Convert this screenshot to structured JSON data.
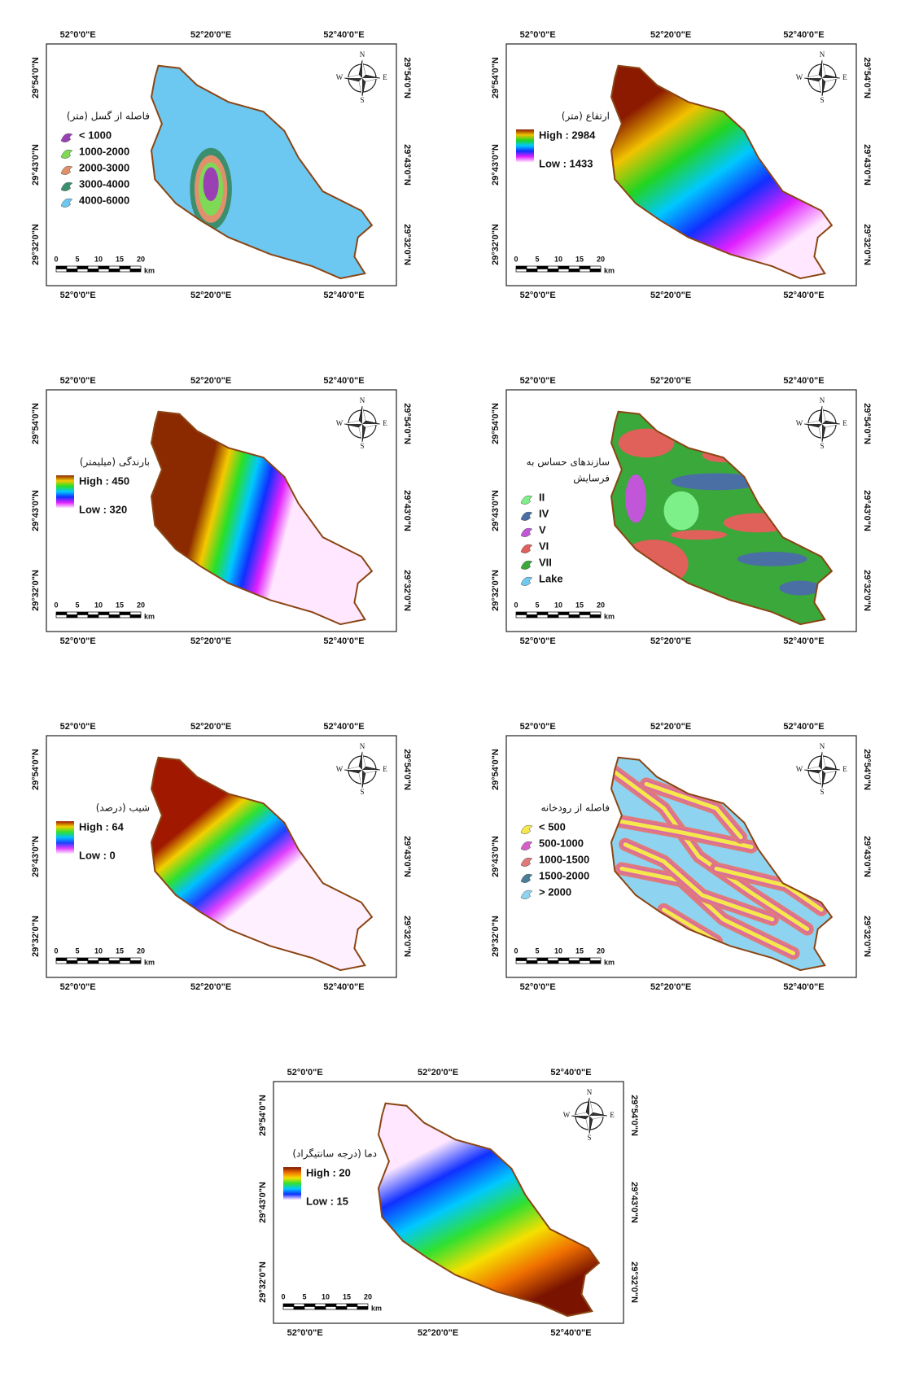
{
  "panels": [
    {
      "lon_top": [
        "52°0'0\"E",
        "52°20'0\"E",
        "52°40'0\"E"
      ],
      "lon_bottom": [
        "52°0'0\"E",
        "52°20'0\"E",
        "52°40'0\"E"
      ],
      "lat_left": [
        "29°54'0\"N",
        "29°43'0\"N",
        "29°32'0\"N"
      ],
      "lat_right": [
        "29°54'0\"N",
        "29°43'0\"N",
        "29°32'0\"N"
      ],
      "compass": [
        "N",
        "E",
        "S",
        "W"
      ],
      "scale": [
        "0",
        "5",
        "10",
        "15",
        "20"
      ],
      "scale_unit": "km",
      "legend": {
        "kind": "classes",
        "title": [
          "فاصله از گسل (متر)"
        ],
        "items": [
          {
            "label": "< 1000",
            "color": "#9b3fb5"
          },
          {
            "label": "1000-2000",
            "color": "#7ed957"
          },
          {
            "label": "2000-3000",
            "color": "#e0906a"
          },
          {
            "label": "3000-4000",
            "color": "#3b8f6e"
          },
          {
            "label": "4000-6000",
            "color": "#6cc8f0"
          }
        ]
      }
    },
    {
      "lon_top": [
        "52°0'0\"E",
        "52°20'0\"E",
        "52°40'0\"E"
      ],
      "lon_bottom": [
        "52°0'0\"E",
        "52°20'0\"E",
        "52°40'0\"E"
      ],
      "lat_left": [
        "29°54'0\"N",
        "29°43'0\"N",
        "29°32'0\"N"
      ],
      "lat_right": [
        "29°54'0\"N",
        "29°43'0\"N",
        "29°32'0\"N"
      ],
      "compass": [
        "N",
        "E",
        "S",
        "W"
      ],
      "scale": [
        "0",
        "5",
        "10",
        "15",
        "20"
      ],
      "scale_unit": "km",
      "legend": {
        "kind": "gradient",
        "title": [
          "ارتفاع (متر)"
        ],
        "high": "High : 2984",
        "low": "Low : 1433",
        "colors": [
          "#8b1a00",
          "#f2c200",
          "#22d422",
          "#00c8ff",
          "#1030ff",
          "#e020ff",
          "#ffe8ff"
        ]
      }
    },
    {
      "lon_top": [
        "52°0'0\"E",
        "52°20'0\"E",
        "52°40'0\"E"
      ],
      "lon_bottom": [
        "52°0'0\"E",
        "52°20'0\"E",
        "52°40'0\"E"
      ],
      "lat_left": [
        "29°54'0\"N",
        "29°43'0\"N",
        "29°32'0\"N"
      ],
      "lat_right": [
        "29°54'0\"N",
        "29°43'0\"N",
        "29°32'0\"N"
      ],
      "compass": [
        "N",
        "E",
        "S",
        "W"
      ],
      "scale": [
        "0",
        "5",
        "10",
        "15",
        "20"
      ],
      "scale_unit": "km",
      "legend": {
        "kind": "gradient",
        "title": [
          "بارندگی (میلیمتر)"
        ],
        "high": "High : 450",
        "low": "Low : 320",
        "colors": [
          "#8b2a00",
          "#f5c800",
          "#28e028",
          "#00c8ff",
          "#1030ff",
          "#e020ff",
          "#ffe8ff"
        ]
      }
    },
    {
      "lon_top": [
        "52°0'0\"E",
        "52°20'0\"E",
        "52°40'0\"E"
      ],
      "lon_bottom": [
        "52°0'0\"E",
        "52°20'0\"E",
        "52°40'0\"E"
      ],
      "lat_left": [
        "29°54'0\"N",
        "29°43'0\"N",
        "29°32'0\"N"
      ],
      "lat_right": [
        "29°54'0\"N",
        "29°43'0\"N",
        "29°32'0\"N"
      ],
      "compass": [
        "N",
        "E",
        "S",
        "W"
      ],
      "scale": [
        "0",
        "5",
        "10",
        "15",
        "20"
      ],
      "scale_unit": "km",
      "legend": {
        "kind": "classes",
        "title": [
          "سازندهای حساس به",
          "فرسایش"
        ],
        "items": [
          {
            "label": "II",
            "color": "#7ef08a"
          },
          {
            "label": "IV",
            "color": "#4a6fa5"
          },
          {
            "label": "V",
            "color": "#c256d8"
          },
          {
            "label": "VI",
            "color": "#e0605a"
          },
          {
            "label": "VII",
            "color": "#3aa83a"
          },
          {
            "label": "Lake",
            "color": "#72c9ef"
          }
        ]
      }
    },
    {
      "lon_top": [
        "52°0'0\"E",
        "52°20'0\"E",
        "52°40'0\"E"
      ],
      "lon_bottom": [
        "52°0'0\"E",
        "52°20'0\"E",
        "52°40'0\"E"
      ],
      "lat_left": [
        "29°54'0\"N",
        "29°43'0\"N",
        "29°32'0\"N"
      ],
      "lat_right": [
        "29°54'0\"N",
        "29°43'0\"N",
        "29°32'0\"N"
      ],
      "compass": [
        "N",
        "E",
        "S",
        "W"
      ],
      "scale": [
        "0",
        "5",
        "10",
        "15",
        "20"
      ],
      "scale_unit": "km",
      "legend": {
        "kind": "gradient",
        "title": [
          "شیب (درصد)"
        ],
        "high": "High : 64",
        "low": "Low : 0",
        "colors": [
          "#a01800",
          "#f2d000",
          "#30e030",
          "#00c0ff",
          "#2040ff",
          "#e040ff",
          "#fff0ff"
        ]
      }
    },
    {
      "lon_top": [
        "52°0'0\"E",
        "52°20'0\"E",
        "52°40'0\"E"
      ],
      "lon_bottom": [
        "52°0'0\"E",
        "52°20'0\"E",
        "52°40'0\"E"
      ],
      "lat_left": [
        "29°54'0\"N",
        "29°43'0\"N",
        "29°32'0\"N"
      ],
      "lat_right": [
        "29°54'0\"N",
        "29°43'0\"N",
        "29°32'0\"N"
      ],
      "compass": [
        "N",
        "E",
        "S",
        "W"
      ],
      "scale": [
        "0",
        "5",
        "10",
        "15",
        "20"
      ],
      "scale_unit": "km",
      "legend": {
        "kind": "classes",
        "title": [
          "فاصله از رودخانه"
        ],
        "items": [
          {
            "label": "< 500",
            "color": "#f5e84a"
          },
          {
            "label": "500-1000",
            "color": "#d45fc9"
          },
          {
            "label": "1000-1500",
            "color": "#e07a7a"
          },
          {
            "label": "1500-2000",
            "color": "#4a7d9a"
          },
          {
            "label": "> 2000",
            "color": "#8ed4f0"
          }
        ]
      }
    },
    {
      "lon_top": [
        "52°0'0\"E",
        "52°20'0\"E",
        "52°40'0\"E"
      ],
      "lon_bottom": [
        "52°0'0\"E",
        "52°20'0\"E",
        "52°40'0\"E"
      ],
      "lat_left": [
        "29°54'0\"N",
        "29°43'0\"N",
        "29°32'0\"N"
      ],
      "lat_right": [
        "29°54'0\"N",
        "29°43'0\"N",
        "29°32'0\"N"
      ],
      "compass": [
        "N",
        "E",
        "S",
        "W"
      ],
      "scale": [
        "0",
        "5",
        "10",
        "15",
        "20"
      ],
      "scale_unit": "km",
      "legend": {
        "kind": "gradient",
        "title": [
          "دما (درجه سانتیگراد)"
        ],
        "high": "High : 20",
        "low": "Low : 15",
        "colors": [
          "#7a1400",
          "#f07000",
          "#f5e000",
          "#30e030",
          "#00c8ff",
          "#1030ff",
          "#ffe8ff"
        ]
      }
    }
  ]
}
